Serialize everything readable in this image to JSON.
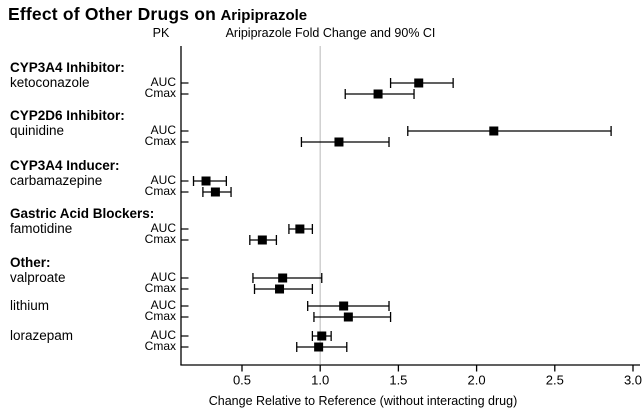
{
  "title": {
    "main": "Effect of Other Drugs on",
    "drug": "Aripiprazole"
  },
  "colors": {
    "marker": "#000000",
    "axis": "#000000",
    "reference_line": "#c9c9c9",
    "text": "#000000",
    "background": "#ffffff"
  },
  "chart_data": {
    "type": "forest",
    "pk_header": "PK",
    "plot_header": "Aripiprazole Fold Change and 90% CI",
    "xlabel": "Change Relative to Reference (without interacting drug)",
    "x_ticks": [
      0.5,
      1.0,
      1.5,
      2.0,
      2.5,
      3.0
    ],
    "x_tick_labels": [
      "0.5",
      "1.0",
      "1.5",
      "2.0",
      "2.5",
      "3.0"
    ],
    "xlim": [
      0.11,
      3.04
    ],
    "reference_line": 1.0,
    "ci_level": "90% CI",
    "groups": [
      {
        "label": "CYP3A4 Inhibitor:",
        "drug": "ketoconazole",
        "rows": [
          {
            "pk": "AUC",
            "est": 1.63,
            "lo": 1.45,
            "hi": 1.85
          },
          {
            "pk": "Cmax",
            "est": 1.37,
            "lo": 1.16,
            "hi": 1.6
          }
        ]
      },
      {
        "label": "CYP2D6 Inhibitor:",
        "drug": "quinidine",
        "rows": [
          {
            "pk": "AUC",
            "est": 2.11,
            "lo": 1.56,
            "hi": 2.86
          },
          {
            "pk": "Cmax",
            "est": 1.12,
            "lo": 0.88,
            "hi": 1.44
          }
        ]
      },
      {
        "label": "CYP3A4 Inducer:",
        "drug": "carbamazepine",
        "rows": [
          {
            "pk": "AUC",
            "est": 0.27,
            "lo": 0.19,
            "hi": 0.4
          },
          {
            "pk": "Cmax",
            "est": 0.33,
            "lo": 0.25,
            "hi": 0.43
          }
        ]
      },
      {
        "label": "Gastric Acid Blockers:",
        "drug": "famotidine",
        "rows": [
          {
            "pk": "AUC",
            "est": 0.87,
            "lo": 0.8,
            "hi": 0.95
          },
          {
            "pk": "Cmax",
            "est": 0.63,
            "lo": 0.55,
            "hi": 0.72
          }
        ]
      },
      {
        "label": "Other:",
        "drug": "valproate",
        "rows": [
          {
            "pk": "AUC",
            "est": 0.76,
            "lo": 0.57,
            "hi": 1.01
          },
          {
            "pk": "Cmax",
            "est": 0.74,
            "lo": 0.58,
            "hi": 0.95
          }
        ]
      },
      {
        "label": "",
        "drug": "lithium",
        "rows": [
          {
            "pk": "AUC",
            "est": 1.15,
            "lo": 0.92,
            "hi": 1.44
          },
          {
            "pk": "Cmax",
            "est": 1.18,
            "lo": 0.96,
            "hi": 1.45
          }
        ]
      },
      {
        "label": "",
        "drug": "lorazepam",
        "rows": [
          {
            "pk": "AUC",
            "est": 1.01,
            "lo": 0.95,
            "hi": 1.07
          },
          {
            "pk": "Cmax",
            "est": 0.99,
            "lo": 0.85,
            "hi": 1.17
          }
        ]
      }
    ]
  }
}
